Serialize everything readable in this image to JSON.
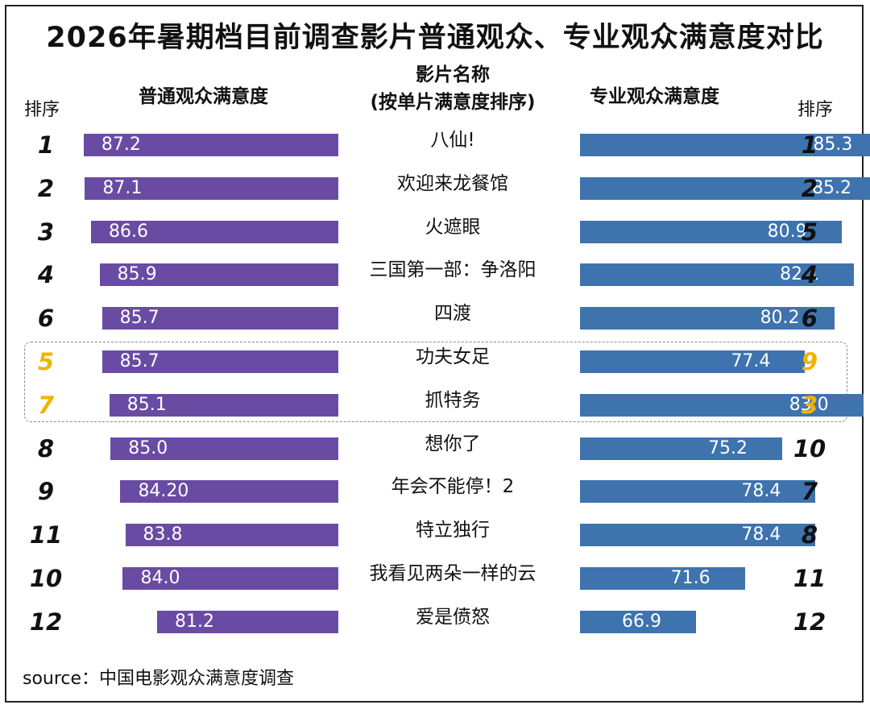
{
  "title": "2026年暑期档目前调查影片普通观众、专业观众满意度对比",
  "headers": {
    "rank_left": "排序",
    "general": "普通观众满意度",
    "film_line1": "影片名称",
    "film_line2": "(按单片满意度排序)",
    "professional": "专业观众满意度",
    "rank_right": "排序"
  },
  "source": "source：中国电影观众满意度调查",
  "colors": {
    "general": "#6a4ba3",
    "professional": "#3e73ae",
    "highlight_rank": "#f0b400"
  },
  "chart_data": {
    "type": "bar",
    "layout": "back-to-back horizontal bars",
    "categories": [
      "八仙!",
      "欢迎来龙餐馆",
      "火遮眼",
      "三国第一部：争洛阳",
      "四渡",
      "功夫女足",
      "抓特务",
      "想你了",
      "年会不能停！2",
      "特立独行",
      "我看见两朵一样的云",
      "爱是偾怒"
    ],
    "series": [
      {
        "name": "普通观众满意度",
        "values": [
          87.2,
          87.1,
          86.6,
          85.9,
          85.7,
          85.7,
          85.1,
          85.0,
          84.2,
          83.8,
          84.0,
          81.2
        ],
        "labels": [
          "87.2",
          "87.1",
          "86.6",
          "85.9",
          "85.7",
          "85.7",
          "85.1",
          "85.0",
          "84.20",
          "83.8",
          "84.0",
          "81.2"
        ]
      },
      {
        "name": "专业观众满意度",
        "values": [
          85.3,
          85.2,
          80.9,
          82.1,
          80.2,
          77.4,
          83.0,
          75.2,
          78.4,
          78.4,
          71.6,
          66.9
        ],
        "labels": [
          "85.3",
          "85.2",
          "80.9",
          "82.1",
          "80.2",
          "77.4",
          "83.0",
          "75.2",
          "78.4",
          "78.4",
          "71.6",
          "66.9"
        ]
      }
    ],
    "rank_general": [
      "1",
      "2",
      "3",
      "4",
      "6",
      "5",
      "7",
      "8",
      "9",
      "11",
      "10",
      "12"
    ],
    "rank_professional": [
      "1",
      "2",
      "5",
      "4",
      "6",
      "9",
      "3",
      "10",
      "7",
      "8",
      "11",
      "12"
    ],
    "highlighted": [
      false,
      false,
      false,
      false,
      false,
      true,
      true,
      false,
      false,
      false,
      false,
      false
    ]
  }
}
